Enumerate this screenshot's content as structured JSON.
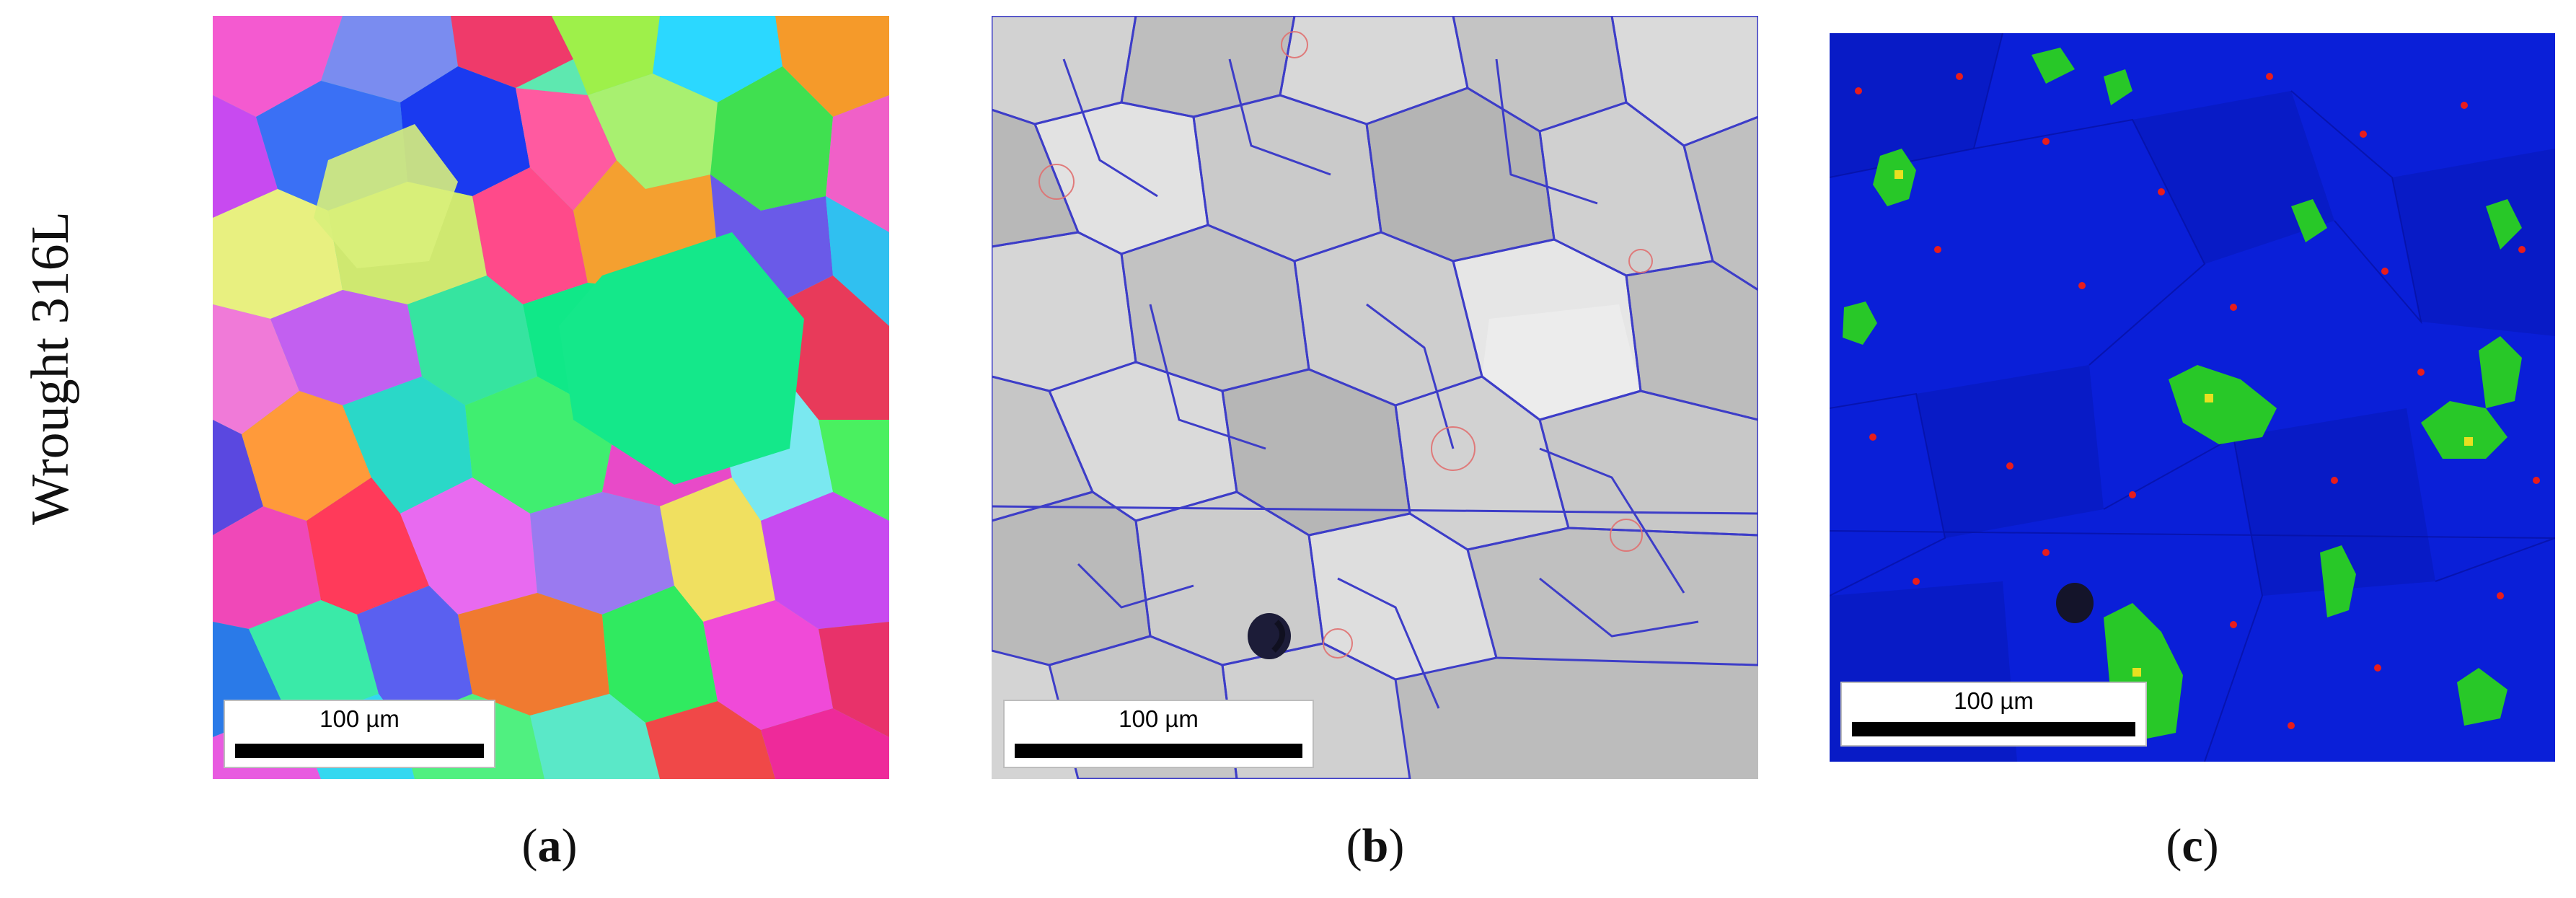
{
  "row_label": "Wrought 316L",
  "panels": [
    {
      "scale_label": "100 µm",
      "caption_letter": "a"
    },
    {
      "scale_label": "100 µm",
      "caption_letter": "b"
    },
    {
      "scale_label": "100 µm",
      "caption_letter": "c"
    }
  ],
  "colors": {
    "ebsd_blue": "#0a1fd8",
    "grain_boundary": "#3d3dc8",
    "twin_boundary": "#e07070",
    "kam_green": "#28c828",
    "kam_red": "#e81c1c"
  }
}
